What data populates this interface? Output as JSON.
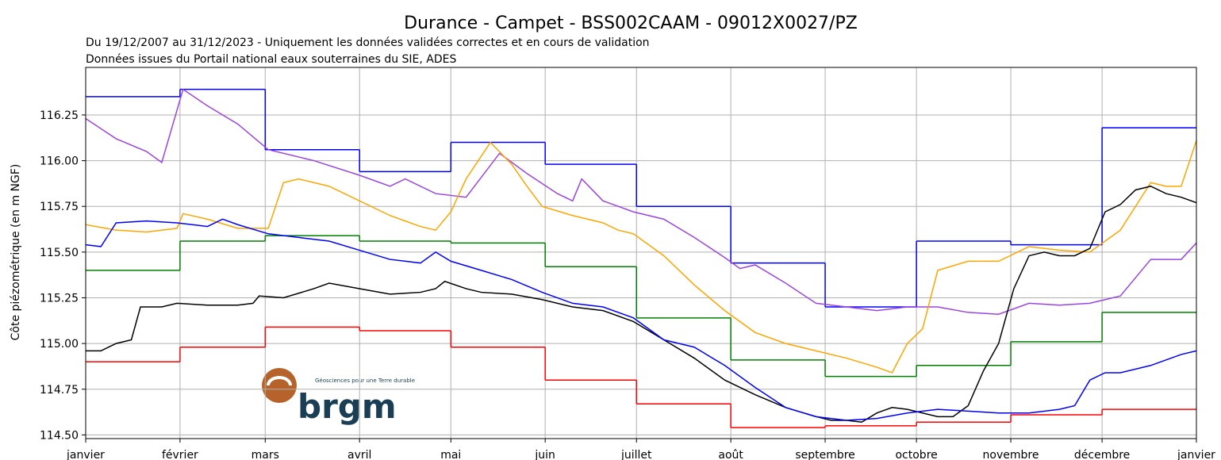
{
  "chart_data": {
    "type": "line",
    "title": "Durance - Campet - BSS002CAAM - 09012X0027/PZ",
    "subtitle": [
      "Du 19/12/2007 au 31/12/2023 - Uniquement les données validées correctes et en cours de validation",
      "Données issues du Portail national eaux souterraines du SIE, ADES"
    ],
    "y_label": "Côte piézométrique (en m NGF)",
    "logo": {
      "name": "brgm",
      "tagline": "Géosciences pour une Terre durable"
    },
    "xlim": [
      0,
      365
    ],
    "xticks": [
      {
        "value": 0,
        "label": "janvier"
      },
      {
        "value": 31,
        "label": "février"
      },
      {
        "value": 59,
        "label": "mars"
      },
      {
        "value": 90,
        "label": "avril"
      },
      {
        "value": 120,
        "label": "mai"
      },
      {
        "value": 151,
        "label": "juin"
      },
      {
        "value": 181,
        "label": "juillet"
      },
      {
        "value": 212,
        "label": "août"
      },
      {
        "value": 243,
        "label": "septembre"
      },
      {
        "value": 273,
        "label": "octobre"
      },
      {
        "value": 304,
        "label": "novembre"
      },
      {
        "value": 334,
        "label": "décembre"
      },
      {
        "value": 365,
        "label": "janvier"
      }
    ],
    "ylim": [
      114.48,
      116.51
    ],
    "yticks": [
      {
        "value": 114.5,
        "label": "114.50"
      },
      {
        "value": 114.75,
        "label": "114.75"
      },
      {
        "value": 115,
        "label": "115.00"
      },
      {
        "value": 115.25,
        "label": "115.25"
      },
      {
        "value": 115.5,
        "label": "115.50"
      },
      {
        "value": 115.75,
        "label": "115.75"
      },
      {
        "value": 116,
        "label": "116.00"
      },
      {
        "value": 116.25,
        "label": "116.25"
      }
    ],
    "grid": true,
    "series": [
      {
        "color": "#0000ff",
        "step": true,
        "x": [
          0,
          31,
          59,
          90,
          120,
          151,
          181,
          212,
          243,
          273,
          304,
          334
        ],
        "values": [
          116.35,
          116.39,
          116.06,
          115.94,
          116.1,
          115.98,
          115.75,
          115.44,
          115.2,
          115.56,
          115.54,
          116.18
        ]
      },
      {
        "color": "#ff0000",
        "step": true,
        "x": [
          0,
          31,
          59,
          90,
          120,
          151,
          181,
          212,
          243,
          273,
          304,
          334
        ],
        "values": [
          114.9,
          114.98,
          115.09,
          115.07,
          114.98,
          114.8,
          114.67,
          114.54,
          114.55,
          114.57,
          114.61,
          114.64
        ]
      },
      {
        "color": "#008000",
        "step": true,
        "x": [
          0,
          31,
          59,
          90,
          120,
          151,
          181,
          212,
          243,
          273,
          304,
          334
        ],
        "values": [
          115.4,
          115.56,
          115.59,
          115.56,
          115.55,
          115.42,
          115.14,
          114.91,
          114.82,
          114.88,
          115.01,
          115.17
        ]
      },
      {
        "color": "#9b45e0",
        "x": [
          0,
          10,
          20,
          25,
          32,
          40,
          50,
          60,
          75,
          90,
          100,
          105,
          115,
          125,
          136,
          145,
          155,
          160,
          163,
          170,
          180,
          190,
          200,
          210,
          215,
          220,
          230,
          240,
          250,
          260,
          270,
          280,
          290,
          300,
          310,
          320,
          330,
          340,
          350,
          360,
          365
        ],
        "values": [
          116.23,
          116.12,
          116.05,
          115.99,
          116.39,
          116.3,
          116.2,
          116.06,
          116.0,
          115.92,
          115.86,
          115.9,
          115.82,
          115.8,
          116.04,
          115.93,
          115.82,
          115.78,
          115.9,
          115.78,
          115.72,
          115.68,
          115.58,
          115.47,
          115.41,
          115.43,
          115.33,
          115.22,
          115.2,
          115.18,
          115.2,
          115.2,
          115.17,
          115.16,
          115.22,
          115.21,
          115.22,
          115.26,
          115.46,
          115.46,
          115.55
        ]
      },
      {
        "color": "#ffa500",
        "x": [
          0,
          10,
          20,
          30,
          32,
          40,
          50,
          60,
          65,
          70,
          80,
          90,
          100,
          110,
          115,
          120,
          125,
          133,
          140,
          145,
          150,
          160,
          170,
          175,
          180,
          190,
          200,
          210,
          220,
          230,
          240,
          250,
          260,
          265,
          270,
          275,
          280,
          290,
          300,
          310,
          320,
          330,
          340,
          350,
          355,
          360,
          365
        ],
        "values": [
          115.65,
          115.62,
          115.61,
          115.63,
          115.71,
          115.68,
          115.63,
          115.63,
          115.88,
          115.9,
          115.86,
          115.78,
          115.7,
          115.64,
          115.62,
          115.72,
          115.9,
          116.1,
          115.98,
          115.86,
          115.75,
          115.7,
          115.66,
          115.62,
          115.6,
          115.48,
          115.32,
          115.18,
          115.06,
          115.0,
          114.96,
          114.92,
          114.87,
          114.84,
          115.0,
          115.08,
          115.4,
          115.45,
          115.45,
          115.53,
          115.51,
          115.5,
          115.62,
          115.88,
          115.86,
          115.86,
          116.11
        ]
      },
      {
        "color": "#000000",
        "x": [
          0,
          5,
          10,
          15,
          18,
          25,
          30,
          40,
          50,
          55,
          57,
          65,
          75,
          80,
          90,
          100,
          110,
          115,
          118,
          125,
          130,
          140,
          150,
          160,
          170,
          180,
          190,
          200,
          210,
          220,
          230,
          240,
          245,
          250,
          255,
          260,
          265,
          270,
          275,
          280,
          285,
          290,
          295,
          300,
          305,
          310,
          315,
          320,
          325,
          330,
          335,
          340,
          345,
          350,
          355,
          360,
          365
        ],
        "values": [
          114.96,
          114.96,
          115.0,
          115.02,
          115.2,
          115.2,
          115.22,
          115.21,
          115.21,
          115.22,
          115.26,
          115.25,
          115.3,
          115.33,
          115.3,
          115.27,
          115.28,
          115.3,
          115.34,
          115.3,
          115.28,
          115.27,
          115.24,
          115.2,
          115.18,
          115.12,
          115.02,
          114.92,
          114.8,
          114.72,
          114.65,
          114.6,
          114.58,
          114.58,
          114.57,
          114.62,
          114.65,
          114.64,
          114.62,
          114.6,
          114.6,
          114.66,
          114.85,
          115.0,
          115.3,
          115.48,
          115.5,
          115.48,
          115.48,
          115.52,
          115.72,
          115.76,
          115.84,
          115.86,
          115.82,
          115.8,
          115.77
        ]
      },
      {
        "color": "#0000ff",
        "x": [
          0,
          5,
          10,
          20,
          30,
          40,
          45,
          50,
          60,
          70,
          80,
          90,
          100,
          110,
          115,
          120,
          130,
          140,
          150,
          160,
          170,
          180,
          190,
          200,
          210,
          220,
          230,
          240,
          250,
          260,
          270,
          280,
          290,
          300,
          310,
          320,
          325,
          330,
          335,
          340,
          350,
          360,
          365
        ],
        "values": [
          115.54,
          115.53,
          115.66,
          115.67,
          115.66,
          115.64,
          115.68,
          115.65,
          115.6,
          115.58,
          115.56,
          115.51,
          115.46,
          115.44,
          115.5,
          115.45,
          115.4,
          115.35,
          115.28,
          115.22,
          115.2,
          115.14,
          115.02,
          114.98,
          114.88,
          114.76,
          114.65,
          114.6,
          114.58,
          114.59,
          114.62,
          114.64,
          114.63,
          114.62,
          114.62,
          114.64,
          114.66,
          114.8,
          114.84,
          114.84,
          114.88,
          114.94,
          114.96
        ]
      }
    ]
  }
}
